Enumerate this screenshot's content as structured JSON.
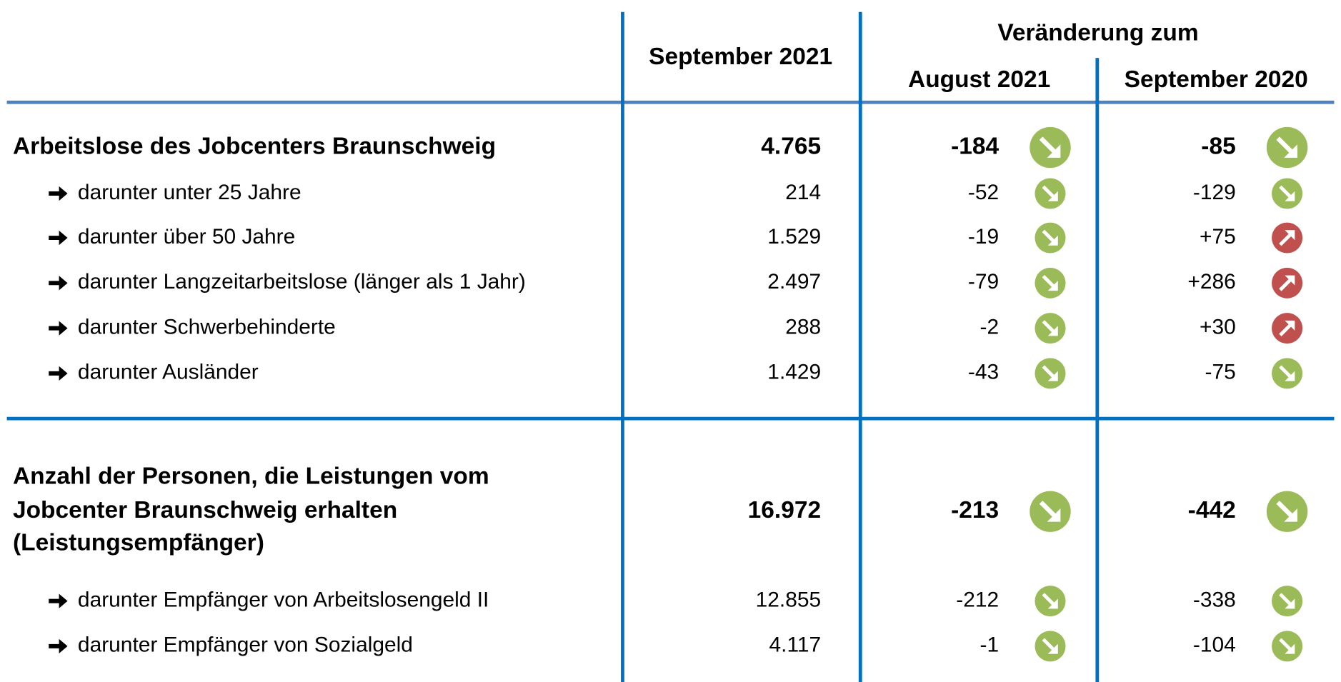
{
  "header": {
    "col1": "September 2021",
    "group": "Veränderung zum",
    "col2": "August 2021",
    "col3": "September 2020"
  },
  "sections": [
    {
      "title_lines": [
        "Arbeitslose des Jobcenters Braunschweig"
      ],
      "value": "4.765",
      "change_month": "-184",
      "change_year": "-85",
      "rows": [
        {
          "label": "darunter unter 25 Jahre",
          "value": "214",
          "change_month": "-52",
          "change_year": "-129"
        },
        {
          "label": "darunter über 50 Jahre",
          "value": "1.529",
          "change_month": "-19",
          "change_year": "+75"
        },
        {
          "label": "darunter Langzeitarbeitslose (länger als 1 Jahr)",
          "value": "2.497",
          "change_month": "-79",
          "change_year": "+286"
        },
        {
          "label": "darunter Schwerbehinderte",
          "value": "288",
          "change_month": "-2",
          "change_year": "+30"
        },
        {
          "label": "darunter Ausländer",
          "value": "1.429",
          "change_month": "-43",
          "change_year": "-75"
        }
      ]
    },
    {
      "title_lines": [
        "Anzahl der Personen, die Leistungen vom",
        "Jobcenter Braunschweig erhalten",
        "(Leistungsempfänger)"
      ],
      "value": "16.972",
      "change_month": "-213",
      "change_year": "-442",
      "rows": [
        {
          "label": "darunter Empfänger von Arbeitslosengeld II",
          "value": "12.855",
          "change_month": "-212",
          "change_year": "-338"
        },
        {
          "label": "darunter Empfänger von Sozialgeld",
          "value": "4.117",
          "change_month": "-1",
          "change_year": "-104"
        }
      ]
    }
  ]
}
